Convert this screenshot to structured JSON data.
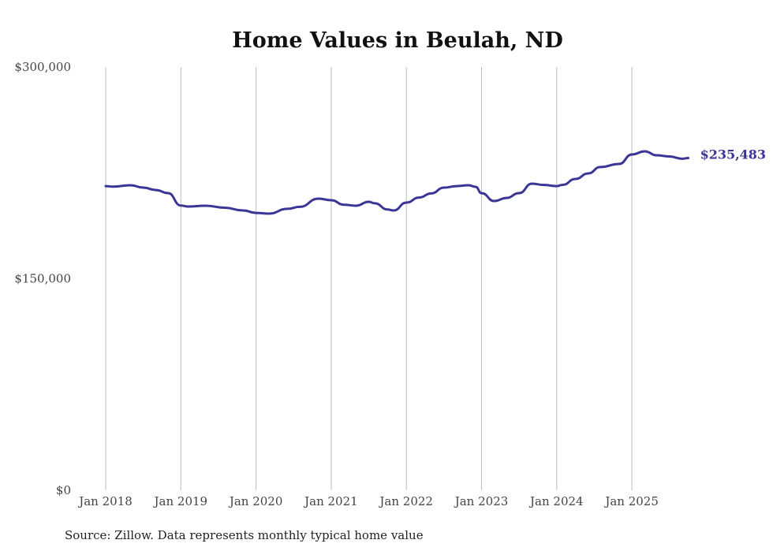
{
  "chart_data": {
    "type": "line",
    "title": "Home Values in Beulah, ND",
    "xlabel": "",
    "ylabel": "",
    "ylim": [
      0,
      300000
    ],
    "xlim": [
      2018,
      2025.75
    ],
    "y_ticks": [
      {
        "value": 0,
        "label": "$0"
      },
      {
        "value": 150000,
        "label": "$150,000"
      },
      {
        "value": 300000,
        "label": "$300,000"
      }
    ],
    "x_ticks": [
      {
        "value": 2018,
        "label": "Jan 2018"
      },
      {
        "value": 2019,
        "label": "Jan 2019"
      },
      {
        "value": 2020,
        "label": "Jan 2020"
      },
      {
        "value": 2021,
        "label": "Jan 2021"
      },
      {
        "value": 2022,
        "label": "Jan 2022"
      },
      {
        "value": 2023,
        "label": "Jan 2023"
      },
      {
        "value": 2024,
        "label": "Jan 2024"
      },
      {
        "value": 2025,
        "label": "Jan 2025"
      }
    ],
    "grid": "vertical",
    "series": [
      {
        "name": "Typical home value",
        "color": "#3a3596",
        "x": [
          2018.0,
          2018.1,
          2018.33,
          2018.5,
          2018.67,
          2018.83,
          2019.0,
          2019.1,
          2019.33,
          2019.58,
          2019.83,
          2020.0,
          2020.17,
          2020.42,
          2020.58,
          2020.83,
          2021.0,
          2021.17,
          2021.33,
          2021.5,
          2021.58,
          2021.75,
          2021.83,
          2022.0,
          2022.17,
          2022.33,
          2022.5,
          2022.67,
          2022.83,
          2022.92,
          2023.0,
          2023.17,
          2023.33,
          2023.5,
          2023.67,
          2023.83,
          2024.0,
          2024.08,
          2024.25,
          2024.42,
          2024.58,
          2024.83,
          2025.0,
          2025.17,
          2025.33,
          2025.5,
          2025.67,
          2025.75
        ],
        "values": [
          215600,
          215200,
          216200,
          214500,
          212800,
          210600,
          201800,
          201100,
          201700,
          200300,
          198300,
          196600,
          196100,
          199500,
          200900,
          206700,
          205600,
          202400,
          201700,
          204500,
          203400,
          199000,
          198300,
          203900,
          207500,
          210400,
          214500,
          215600,
          216200,
          215100,
          210600,
          205000,
          207200,
          210600,
          217300,
          216400,
          215600,
          216500,
          220700,
          224600,
          229100,
          231300,
          238000,
          240200,
          237400,
          236600,
          235000,
          235483
        ]
      }
    ],
    "annotations": [
      {
        "text": "$235,483",
        "x": 2025.75,
        "y": 235483
      }
    ],
    "source": "Source: Zillow. Data represents monthly typical home value"
  }
}
